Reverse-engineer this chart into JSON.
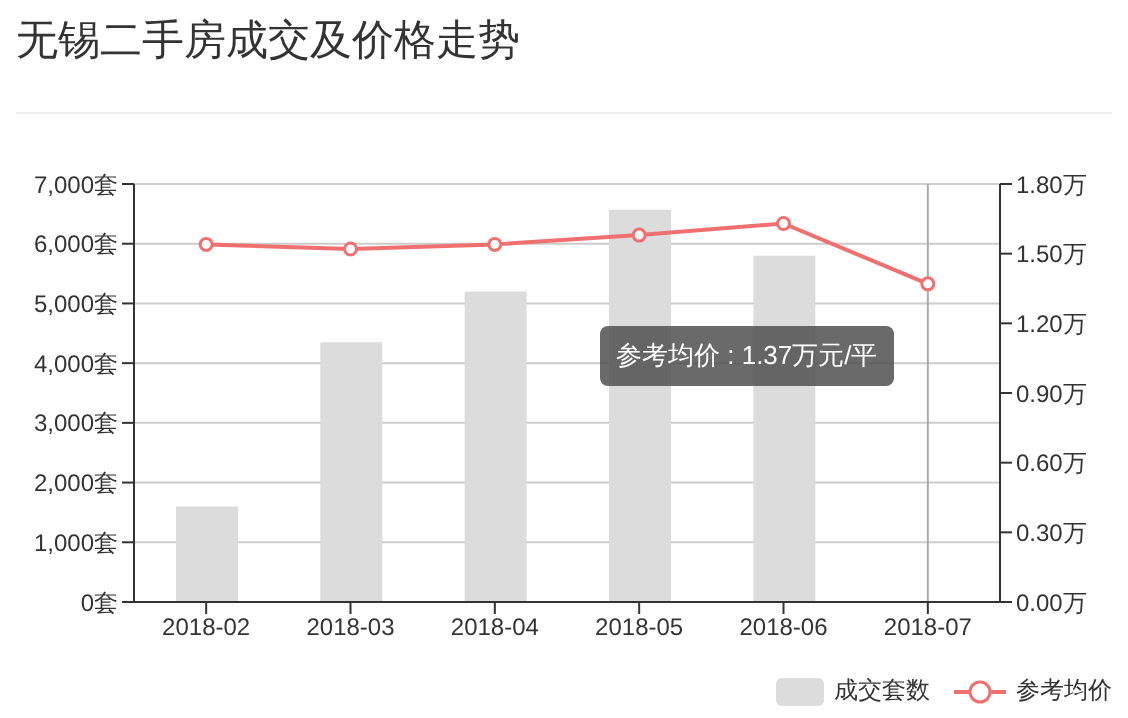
{
  "chart_data": {
    "type": "bar",
    "title": "无锡二手房成交及价格走势",
    "categories": [
      "2018-02",
      "2018-03",
      "2018-04",
      "2018-05",
      "2018-06",
      "2018-07"
    ],
    "series": [
      {
        "name": "成交套数",
        "color": "#dcdcdc",
        "values": [
          1600,
          4350,
          5200,
          6570,
          5800,
          null
        ]
      },
      {
        "name": "参考均价",
        "type": "line",
        "axis": "y2",
        "color": "#f07070",
        "values": [
          1.54,
          1.52,
          1.54,
          1.58,
          1.63,
          1.37
        ]
      }
    ],
    "ylim": [
      0,
      7000
    ],
    "yticks": [
      {
        "value": 0,
        "label": "0套"
      },
      {
        "value": 1000,
        "label": "1,000套"
      },
      {
        "value": 2000,
        "label": "2,000套"
      },
      {
        "value": 3000,
        "label": "3,000套"
      },
      {
        "value": 4000,
        "label": "4,000套"
      },
      {
        "value": 5000,
        "label": "5,000套"
      },
      {
        "value": 6000,
        "label": "6,000套"
      },
      {
        "value": 7000,
        "label": "7,000套"
      }
    ],
    "y2lim": [
      0,
      1.8
    ],
    "y2ticks": [
      {
        "value": 0,
        "label": "0.00万"
      },
      {
        "value": 0.3,
        "label": "0.30万"
      },
      {
        "value": 0.6,
        "label": "0.60万"
      },
      {
        "value": 0.9,
        "label": "0.90万"
      },
      {
        "value": 1.2,
        "label": "1.20万"
      },
      {
        "value": 1.5,
        "label": "1.50万"
      },
      {
        "value": 1.8,
        "label": "1.80万"
      }
    ],
    "grid": "y",
    "legend": "bottom right",
    "marker": "circle",
    "ref_lines": [
      {
        "axis": "x",
        "value": "2018-07",
        "color": "#aaaaaa"
      }
    ],
    "annotations": [
      "参考均价 : 1.37万元/平"
    ]
  }
}
